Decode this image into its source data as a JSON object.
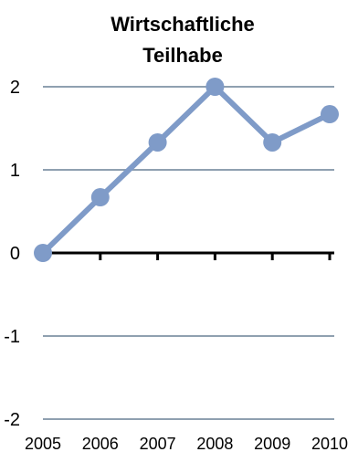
{
  "chart_data": {
    "type": "line",
    "title_lines": [
      "Wirtschaftliche",
      "Teilhabe"
    ],
    "categories": [
      "2005",
      "2006",
      "2007",
      "2008",
      "2009",
      "2010"
    ],
    "y_ticks": [
      "2",
      "1",
      "0",
      "-1",
      "-2"
    ],
    "ylim": [
      -2,
      2
    ],
    "grid": true,
    "legend": "none",
    "series": [
      {
        "values": [
          0,
          0.67,
          1.33,
          2,
          1.33,
          1.67
        ]
      }
    ],
    "colors": {
      "series": "#7f9bc8",
      "grid": "#8fa0b0",
      "zero_axis": "#000000"
    }
  }
}
